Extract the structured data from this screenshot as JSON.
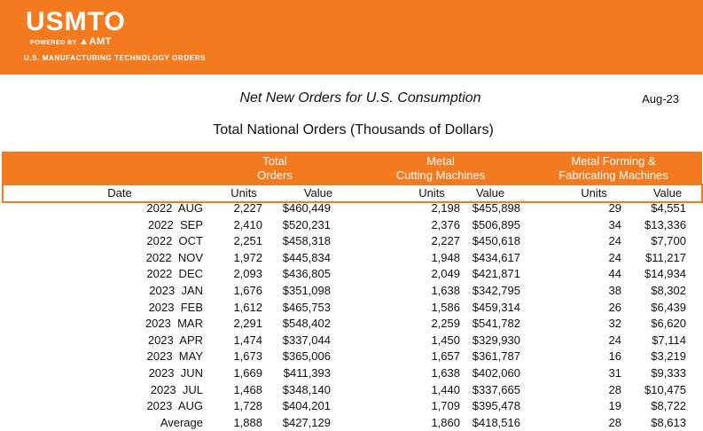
{
  "brand": {
    "logo_text": "USMTO",
    "powered_prefix": "POWERED BY",
    "powered_brand": "AMT",
    "subtitle": "U.S. MANUFACTURING TECHNOLOGY ORDERS"
  },
  "report": {
    "title": "Net New Orders for U.S. Consumption",
    "month": "Aug-23",
    "subtitle": "Total National Orders (Thousands of Dollars)"
  },
  "groups": {
    "total_line1": "Total",
    "total_line2": "Orders",
    "metal_line1": "Metal",
    "metal_line2": "Cutting Machines",
    "forming_line1": "Metal Forming &",
    "forming_line2": "Fabricating Machines"
  },
  "columns": {
    "date": "Date",
    "units": "Units",
    "value": "Value"
  },
  "rows": [
    {
      "date": "2022  AUG",
      "tu": "2,227",
      "tv": "$460,449",
      "cu": "2,198",
      "cv": "$455,898",
      "fu": "29",
      "fv": "$4,551"
    },
    {
      "date": "2022  SEP",
      "tu": "2,410",
      "tv": "$520,231",
      "cu": "2,376",
      "cv": "$506,895",
      "fu": "34",
      "fv": "$13,336"
    },
    {
      "date": "2022  OCT",
      "tu": "2,251",
      "tv": "$458,318",
      "cu": "2,227",
      "cv": "$450,618",
      "fu": "24",
      "fv": "$7,700"
    },
    {
      "date": "2022  NOV",
      "tu": "1,972",
      "tv": "$445,834",
      "cu": "1,948",
      "cv": "$434,617",
      "fu": "24",
      "fv": "$11,217"
    },
    {
      "date": "2022  DEC",
      "tu": "2,093",
      "tv": "$436,805",
      "cu": "2,049",
      "cv": "$421,871",
      "fu": "44",
      "fv": "$14,934"
    },
    {
      "date": "2023  JAN",
      "tu": "1,676",
      "tv": "$351,098",
      "cu": "1,638",
      "cv": "$342,795",
      "fu": "38",
      "fv": "$8,302"
    },
    {
      "date": "2023  FEB",
      "tu": "1,612",
      "tv": "$465,753",
      "cu": "1,586",
      "cv": "$459,314",
      "fu": "26",
      "fv": "$6,439"
    },
    {
      "date": "2023  MAR",
      "tu": "2,291",
      "tv": "$548,402",
      "cu": "2,259",
      "cv": "$541,782",
      "fu": "32",
      "fv": "$6,620"
    },
    {
      "date": "2023  APR",
      "tu": "1,474",
      "tv": "$337,044",
      "cu": "1,450",
      "cv": "$329,930",
      "fu": "24",
      "fv": "$7,114"
    },
    {
      "date": "2023  MAY",
      "tu": "1,673",
      "tv": "$365,006",
      "cu": "1,657",
      "cv": "$361,787",
      "fu": "16",
      "fv": "$3,219"
    },
    {
      "date": "2023  JUN",
      "tu": "1,669",
      "tv": "$411,393",
      "cu": "1,638",
      "cv": "$402,060",
      "fu": "31",
      "fv": "$9,333"
    },
    {
      "date": "2023  JUL",
      "tu": "1,468",
      "tv": "$348,140",
      "cu": "1,440",
      "cv": "$337,665",
      "fu": "28",
      "fv": "$10,475"
    },
    {
      "date": "2023  AUG",
      "tu": "1,728",
      "tv": "$404,201",
      "cu": "1,709",
      "cv": "$395,478",
      "fu": "19",
      "fv": "$8,722"
    },
    {
      "date": "Average",
      "tu": "1,888",
      "tv": "$427,129",
      "cu": "1,860",
      "cv": "$418,516",
      "fu": "28",
      "fv": "$8,613"
    }
  ]
}
